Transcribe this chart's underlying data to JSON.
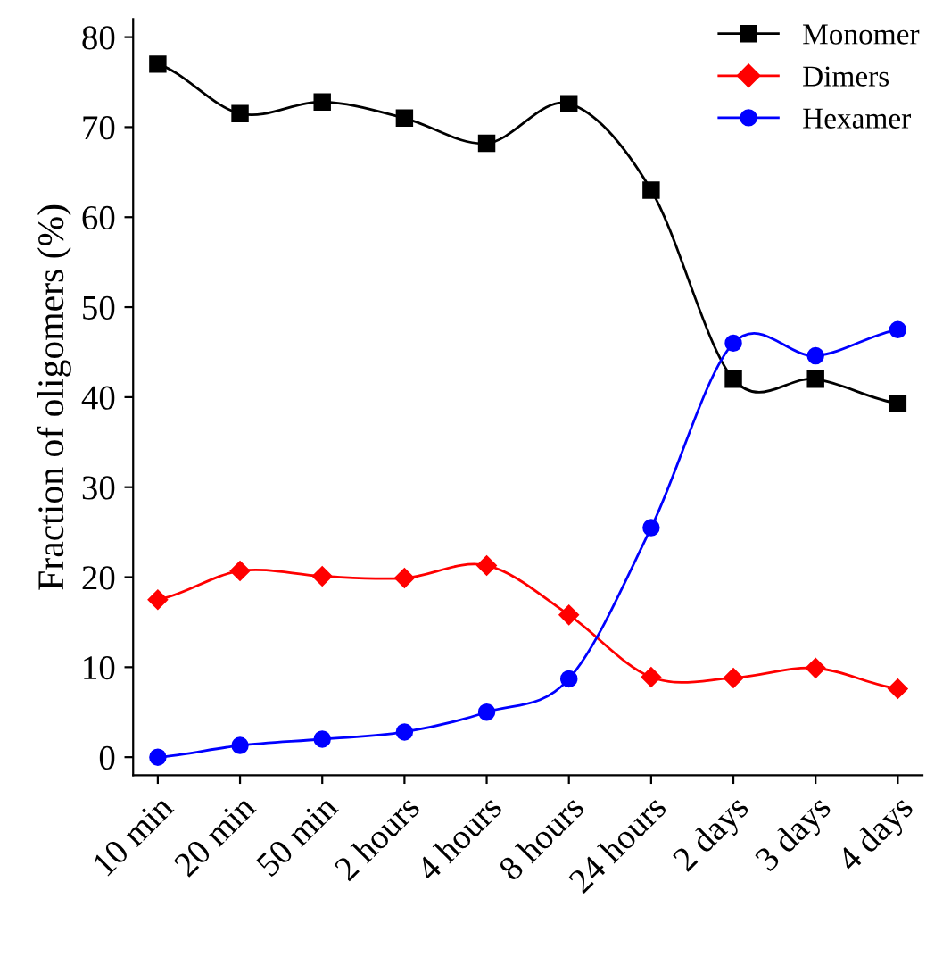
{
  "chart_data": {
    "type": "line",
    "ylabel": "Fraction of oligomers (%)",
    "categories": [
      "10 min",
      "20 min",
      "50 min",
      "2 hours",
      "4 hours",
      "8 hours",
      "24 hours",
      "2 days",
      "3 days",
      "4 days"
    ],
    "series": [
      {
        "name": "Monomer",
        "color": "#000000",
        "marker": "square",
        "values": [
          77,
          71.5,
          72.8,
          71,
          68.2,
          72.6,
          63,
          42,
          42,
          39.3
        ]
      },
      {
        "name": "Dimers",
        "color": "#ff0000",
        "marker": "diamond",
        "values": [
          17.5,
          20.7,
          20.1,
          19.9,
          21.3,
          15.8,
          8.9,
          8.8,
          9.9,
          7.6
        ]
      },
      {
        "name": "Hexamer",
        "color": "#0000ff",
        "marker": "circle",
        "values": [
          0,
          1.3,
          2,
          2.8,
          5,
          8.7,
          25.5,
          46,
          44.6,
          47.5
        ]
      }
    ],
    "ylim": [
      -2,
      82
    ],
    "yticks": [
      0,
      10,
      20,
      30,
      40,
      50,
      60,
      70,
      80
    ],
    "grid": false,
    "legend": "top right",
    "line_style": "solid"
  }
}
